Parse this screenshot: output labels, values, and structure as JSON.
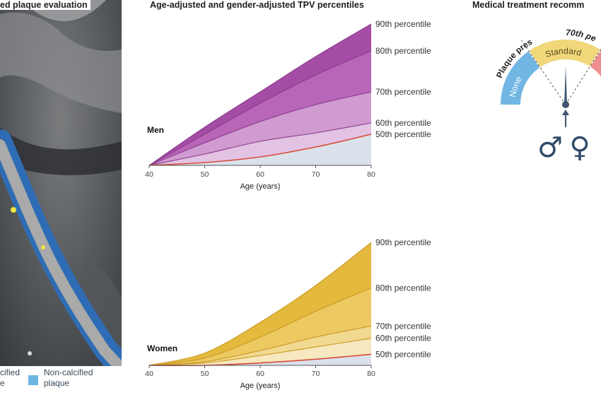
{
  "ct_panel": {
    "title": "ed plaque evaluation",
    "legend": {
      "calcified_fragment_1": "cified",
      "calcified_fragment_2": "e",
      "noncalcified_label_1": "Non-calcified",
      "noncalcified_label_2": "plaque",
      "noncalcified_color": "#6db5e3"
    }
  },
  "chart_data": [
    {
      "type": "area",
      "title": "Age-adjusted and gender-adjusted TPV percentiles",
      "group_label": "Men",
      "xlabel": "Age (years)",
      "xlim": [
        40,
        80
      ],
      "ylim": [
        0,
        1
      ],
      "x_ticks": [
        40,
        50,
        60,
        70,
        80
      ],
      "x": [
        40,
        50,
        60,
        70,
        80
      ],
      "series": [
        {
          "name": "90th percentile",
          "values": [
            0,
            0.27,
            0.52,
            0.77,
            1.0
          ],
          "color": "#a54da6"
        },
        {
          "name": "80th percentile",
          "values": [
            0,
            0.22,
            0.44,
            0.64,
            0.81
          ],
          "color": "#b766b8"
        },
        {
          "name": "70th percentile",
          "values": [
            0,
            0.16,
            0.31,
            0.43,
            0.52
          ],
          "color": "#cf9bd0"
        },
        {
          "name": "60th percentile",
          "values": [
            0,
            0.08,
            0.17,
            0.23,
            0.3
          ],
          "color": "#e2c3e3"
        },
        {
          "name": "50th percentile",
          "values": [
            0,
            0.02,
            0.06,
            0.13,
            0.22
          ],
          "color": "#dbe1ea"
        }
      ],
      "median_line_color": "#d84a3a",
      "base_fill_color": "#dbe1ea"
    },
    {
      "type": "area",
      "title": "",
      "group_label": "Women",
      "xlabel": "Age (years)",
      "xlim": [
        40,
        80
      ],
      "ylim": [
        0,
        1
      ],
      "x_ticks": [
        40,
        50,
        60,
        70,
        80
      ],
      "x": [
        40,
        50,
        60,
        70,
        80
      ],
      "series": [
        {
          "name": "90th percentile",
          "values": [
            0,
            0.1,
            0.35,
            0.65,
            1.0
          ],
          "color": "#e3b93e"
        },
        {
          "name": "80th percentile",
          "values": [
            0,
            0.06,
            0.23,
            0.44,
            0.63
          ],
          "color": "#ecc961"
        },
        {
          "name": "70th percentile",
          "values": [
            0,
            0.03,
            0.12,
            0.23,
            0.32
          ],
          "color": "#f2d991"
        },
        {
          "name": "60th percentile",
          "values": [
            0,
            0.02,
            0.08,
            0.15,
            0.22
          ],
          "color": "#f7e8bf"
        },
        {
          "name": "50th percentile",
          "values": [
            0,
            0.0,
            0.02,
            0.05,
            0.09
          ],
          "color": "#dbe1ea"
        }
      ],
      "median_line_color": "#d84a3a",
      "base_fill_color": "#dbe1ea"
    }
  ],
  "treatment_panel": {
    "title": "Medical treatment recomm",
    "arc_label_plaque": "Plaque present",
    "arc_label_70th": "70th pe",
    "segment_none": "None",
    "segment_standard": "Standard",
    "colors": {
      "none": "#72b7e4",
      "standard": "#f0d77a",
      "intensive": "#ef8e8e",
      "needle": "#3d5570"
    },
    "symbols": {
      "male": "♂",
      "female": "♀"
    }
  }
}
